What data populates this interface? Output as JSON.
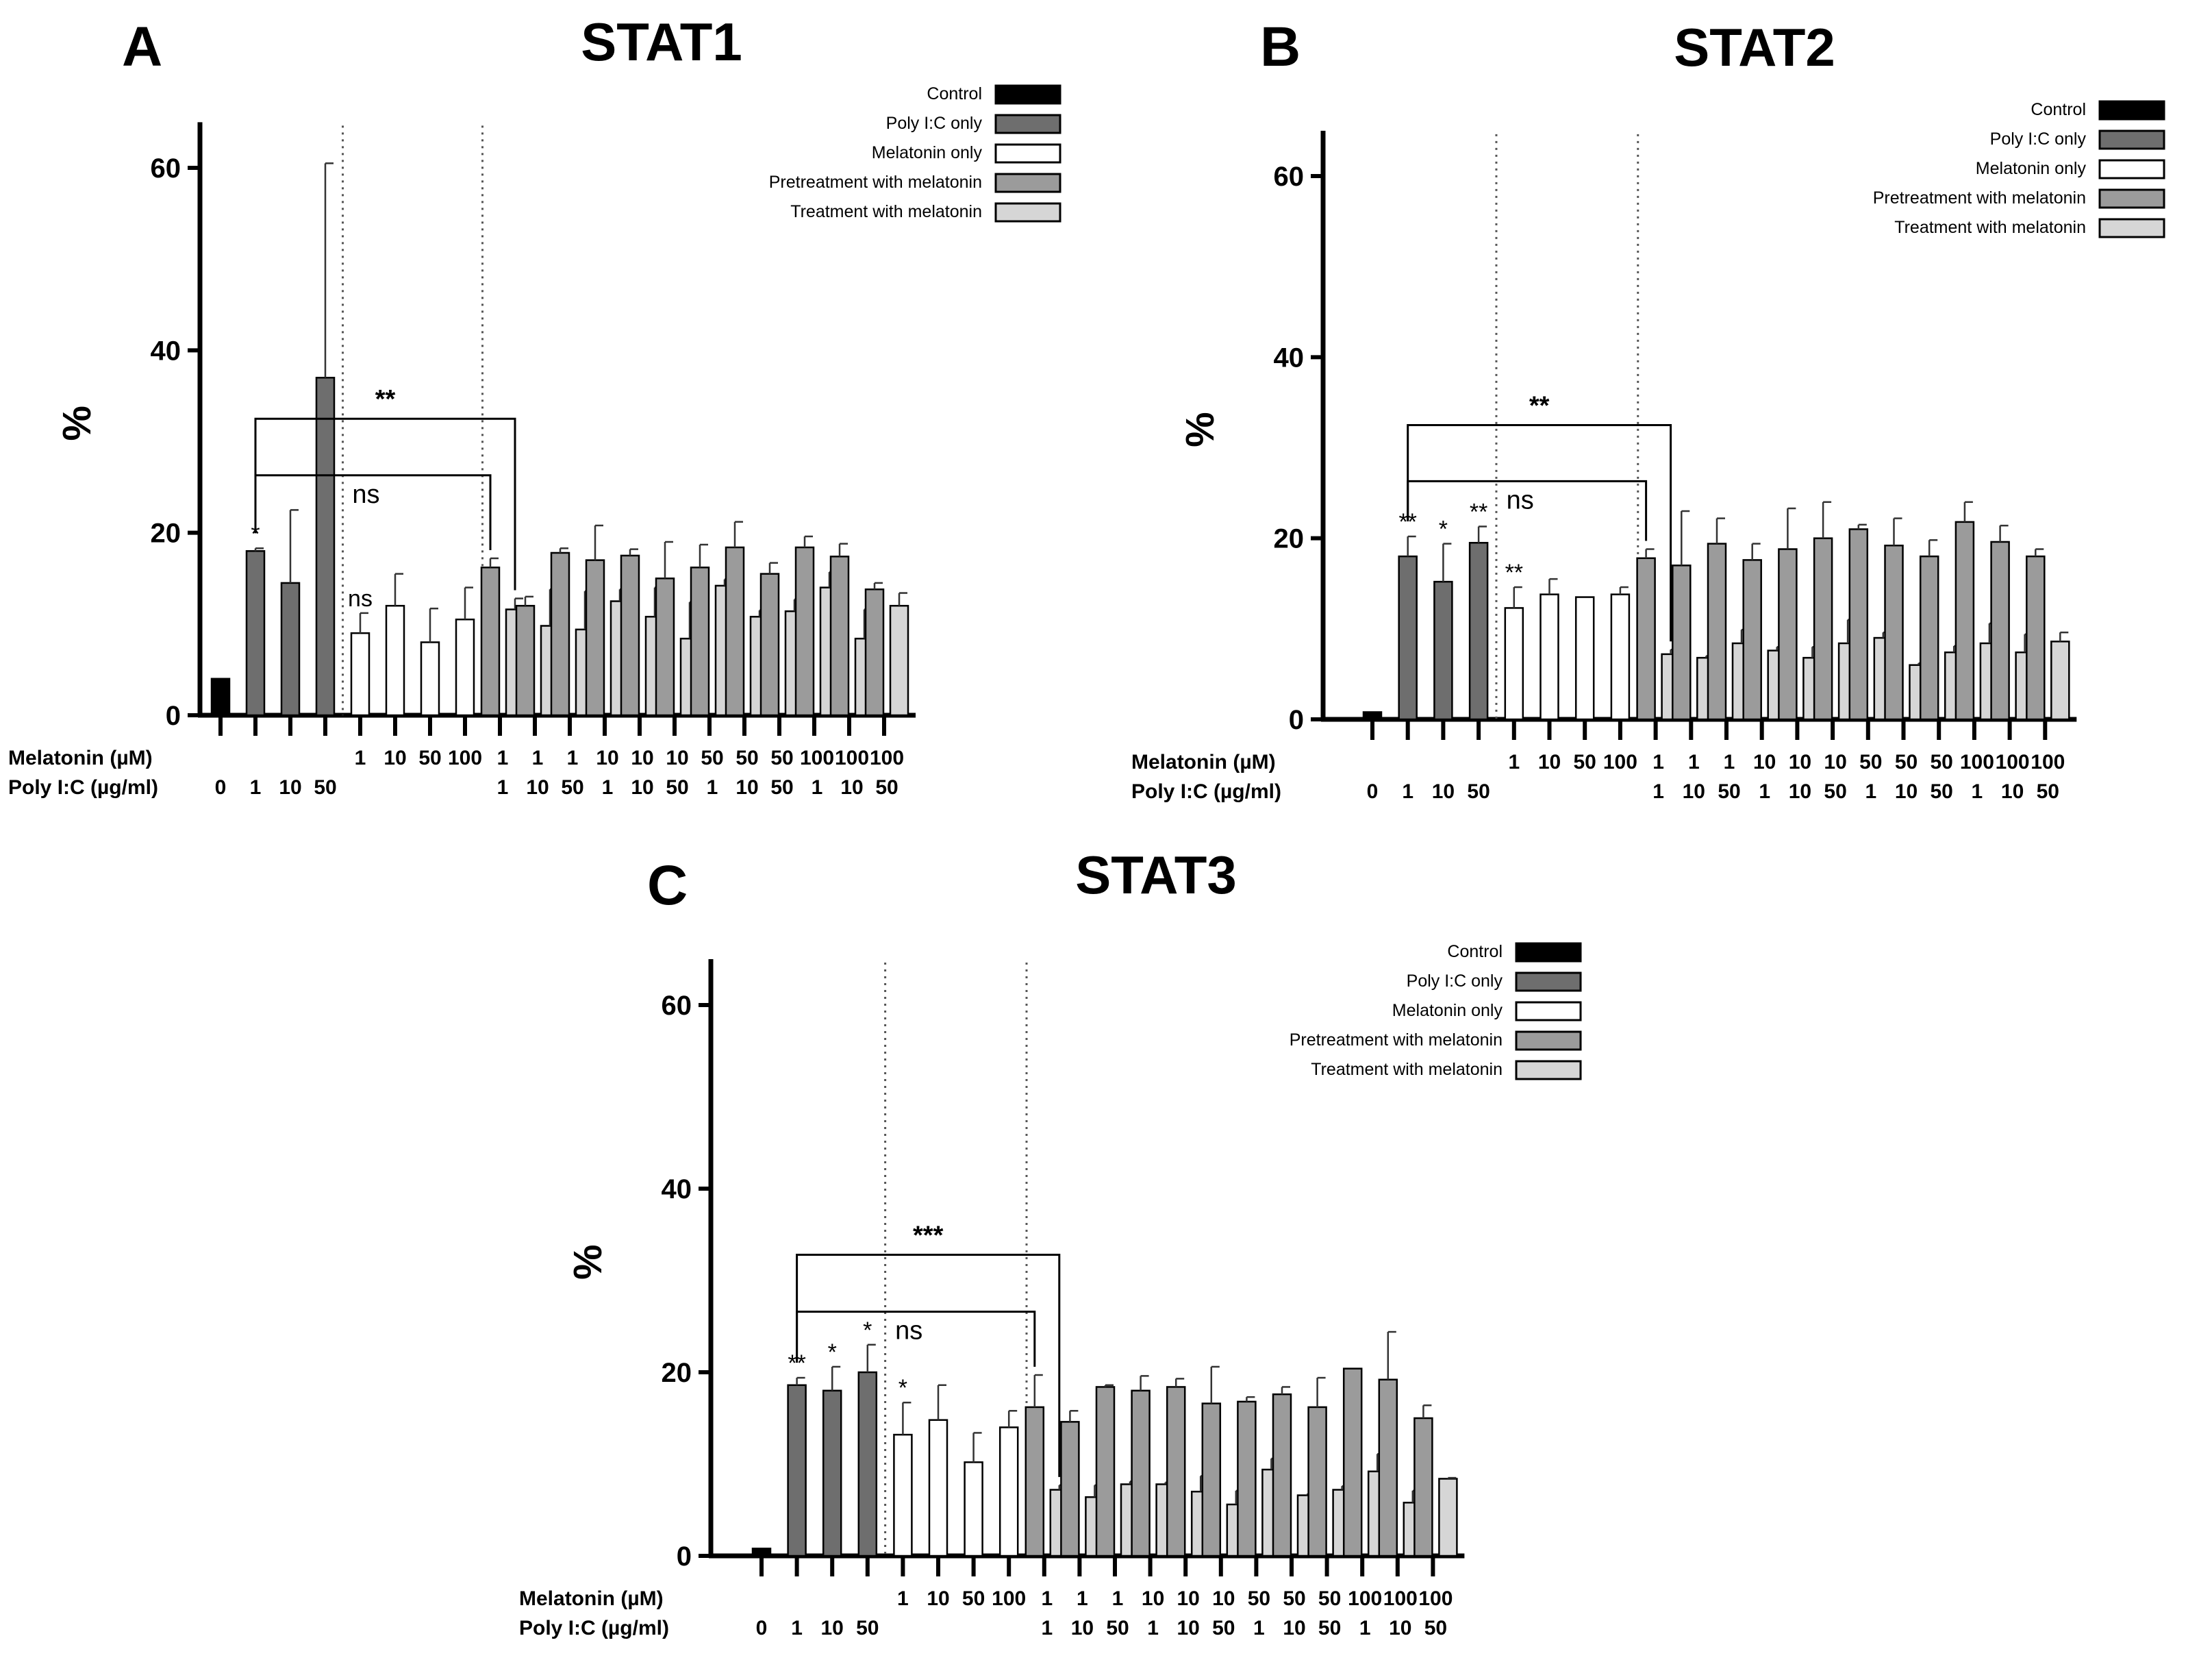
{
  "colors": {
    "control": "#000000",
    "poly_only": "#6e6e6e",
    "melatonin_only": "#ffffff",
    "pretreatment": "#9b9b9b",
    "treatment": "#d6d6d6"
  },
  "conditions": {
    "row_labels": [
      "Melatonin (µM)",
      "Poly I:C (µg/ml)"
    ],
    "melatonin": [
      "",
      "",
      "",
      "",
      "1",
      "10",
      "50",
      "100",
      "1",
      "1",
      "1",
      "10",
      "10",
      "10",
      "50",
      "50",
      "50",
      "100",
      "100",
      "100"
    ],
    "polyic": [
      "0",
      "1",
      "10",
      "50",
      "",
      "",
      "",
      "",
      "1",
      "10",
      "50",
      "1",
      "10",
      "50",
      "1",
      "10",
      "50",
      "1",
      "10",
      "50"
    ]
  },
  "chart_data": [
    {
      "type": "bar",
      "panel_letter": "A",
      "title": "STAT1",
      "ylabel": "%",
      "ylim": [
        0,
        65
      ],
      "yticks": [
        "0",
        "20",
        "40",
        "60"
      ],
      "legend": {
        "placement": "top-right",
        "entries": [
          "Control",
          "Poly I:C only",
          "Melatonin only",
          "Pretreatment with melatonin",
          "Treatment with melatonin"
        ]
      },
      "singles": [
        {
          "kind": "control",
          "value": 4,
          "err": 0
        },
        {
          "kind": "poly_only",
          "value": 18,
          "err": 0.3
        },
        {
          "kind": "poly_only",
          "value": 14.5,
          "err": 8
        },
        {
          "kind": "poly_only",
          "value": 37,
          "err": 23.5
        },
        {
          "kind": "melatonin_only",
          "value": 9,
          "err": 2.2
        },
        {
          "kind": "melatonin_only",
          "value": 12,
          "err": 3.5
        },
        {
          "kind": "melatonin_only",
          "value": 8,
          "err": 3.7
        },
        {
          "kind": "melatonin_only",
          "value": 10.5,
          "err": 3.5
        }
      ],
      "combos": [
        {
          "pre": 16.2,
          "pre_err": 1,
          "treat": 11.6,
          "treat_err": 1.2
        },
        {
          "pre": 12,
          "pre_err": 1,
          "treat": 9.8,
          "treat_err": 4
        },
        {
          "pre": 17.8,
          "pre_err": 0.5,
          "treat": 9.4,
          "treat_err": 4.2
        },
        {
          "pre": 17,
          "pre_err": 3.8,
          "treat": 12.5,
          "treat_err": 1.3
        },
        {
          "pre": 17.5,
          "pre_err": 0.7,
          "treat": 10.8,
          "treat_err": 3.2
        },
        {
          "pre": 15,
          "pre_err": 4,
          "treat": 8.4,
          "treat_err": 4
        },
        {
          "pre": 16.2,
          "pre_err": 2.5,
          "treat": 14.2,
          "treat_err": 0.7
        },
        {
          "pre": 18.4,
          "pre_err": 2.8,
          "treat": 10.8,
          "treat_err": 0.7
        },
        {
          "pre": 15.5,
          "pre_err": 1.2,
          "treat": 11.4,
          "treat_err": 1.3
        },
        {
          "pre": 18.4,
          "pre_err": 1.2,
          "treat": 14,
          "treat_err": 1.7
        },
        {
          "pre": 17.4,
          "pre_err": 1.4,
          "treat": 8.4,
          "treat_err": 3.2
        },
        {
          "pre": 13.8,
          "pre_err": 0.7,
          "treat": 12,
          "treat_err": 1.4
        }
      ],
      "singles_sig": [
        {
          "index": 1,
          "text": "*"
        },
        {
          "index": 4,
          "text": "ns"
        }
      ],
      "brackets": [
        {
          "from": "single:1",
          "to": "combo:0:treat",
          "text": "**",
          "level": 0
        },
        {
          "from": "single:1",
          "to": "combo:0:pre",
          "text": "ns",
          "level": 1
        }
      ]
    },
    {
      "type": "bar",
      "panel_letter": "B",
      "title": "STAT2",
      "ylabel": "%",
      "ylim": [
        0,
        65
      ],
      "yticks": [
        "0",
        "20",
        "40",
        "60"
      ],
      "legend": {
        "placement": "top-right",
        "entries": [
          "Control",
          "Poly I:C only",
          "Melatonin only",
          "Pretreatment with melatonin",
          "Treatment with melatonin"
        ]
      },
      "singles": [
        {
          "kind": "control",
          "value": 0.8,
          "err": 0
        },
        {
          "kind": "poly_only",
          "value": 18,
          "err": 2.2
        },
        {
          "kind": "poly_only",
          "value": 15.2,
          "err": 4.2
        },
        {
          "kind": "poly_only",
          "value": 19.5,
          "err": 1.8
        },
        {
          "kind": "melatonin_only",
          "value": 12.3,
          "err": 2.3
        },
        {
          "kind": "melatonin_only",
          "value": 13.8,
          "err": 1.7
        },
        {
          "kind": "melatonin_only",
          "value": 13.5,
          "err": 0
        },
        {
          "kind": "melatonin_only",
          "value": 13.8,
          "err": 0.8
        }
      ],
      "combos": [
        {
          "pre": 17.8,
          "pre_err": 1,
          "treat": 7.2,
          "treat_err": 0.5
        },
        {
          "pre": 17,
          "pre_err": 6,
          "treat": 6.8,
          "treat_err": 0.2
        },
        {
          "pre": 19.4,
          "pre_err": 2.8,
          "treat": 8.4,
          "treat_err": 1.5
        },
        {
          "pre": 17.6,
          "pre_err": 1.8,
          "treat": 7.6,
          "treat_err": 0.4
        },
        {
          "pre": 18.8,
          "pre_err": 4.5,
          "treat": 6.8,
          "treat_err": 1.2
        },
        {
          "pre": 20,
          "pre_err": 4,
          "treat": 8.4,
          "treat_err": 2.6
        },
        {
          "pre": 21,
          "pre_err": 0.5,
          "treat": 9,
          "treat_err": 0.6
        },
        {
          "pre": 19.2,
          "pre_err": 3,
          "treat": 6,
          "treat_err": 0.2
        },
        {
          "pre": 18,
          "pre_err": 1.8,
          "treat": 7.4,
          "treat_err": 0.7
        },
        {
          "pre": 21.8,
          "pre_err": 2.2,
          "treat": 8.4,
          "treat_err": 2.2
        },
        {
          "pre": 19.6,
          "pre_err": 1.8,
          "treat": 7.4,
          "treat_err": 2
        },
        {
          "pre": 18,
          "pre_err": 0.8,
          "treat": 8.6,
          "treat_err": 1
        }
      ],
      "singles_sig": [
        {
          "index": 1,
          "text": "**"
        },
        {
          "index": 2,
          "text": "*"
        },
        {
          "index": 3,
          "text": "**"
        },
        {
          "index": 4,
          "text": "**"
        }
      ],
      "brackets": [
        {
          "from": "single:1",
          "to": "combo:0:treat",
          "text": "**",
          "level": 0
        },
        {
          "from": "single:1",
          "to": "combo:0:pre",
          "text": "ns",
          "level": 1
        }
      ]
    },
    {
      "type": "bar",
      "panel_letter": "C",
      "title": "STAT3",
      "ylabel": "%",
      "ylim": [
        0,
        65
      ],
      "yticks": [
        "0",
        "20",
        "40",
        "60"
      ],
      "legend": {
        "placement": "top-right",
        "entries": [
          "Control",
          "Poly I:C only",
          "Melatonin only",
          "Pretreatment with melatonin",
          "Treatment with melatonin"
        ]
      },
      "singles": [
        {
          "kind": "control",
          "value": 0.8,
          "err": 0
        },
        {
          "kind": "poly_only",
          "value": 18.6,
          "err": 0.8
        },
        {
          "kind": "poly_only",
          "value": 18,
          "err": 2.6
        },
        {
          "kind": "poly_only",
          "value": 20,
          "err": 3
        },
        {
          "kind": "melatonin_only",
          "value": 13.2,
          "err": 3.5
        },
        {
          "kind": "melatonin_only",
          "value": 14.8,
          "err": 3.8
        },
        {
          "kind": "melatonin_only",
          "value": 10.2,
          "err": 3.2
        },
        {
          "kind": "melatonin_only",
          "value": 14,
          "err": 1.8
        }
      ],
      "combos": [
        {
          "pre": 16.2,
          "pre_err": 3.5,
          "treat": 7.2,
          "treat_err": 0.5
        },
        {
          "pre": 14.6,
          "pre_err": 1.2,
          "treat": 6.4,
          "treat_err": 1.3
        },
        {
          "pre": 18.4,
          "pre_err": 0.2,
          "treat": 7.8,
          "treat_err": 0.3
        },
        {
          "pre": 18,
          "pre_err": 1.6,
          "treat": 7.8,
          "treat_err": 0.2
        },
        {
          "pre": 18.4,
          "pre_err": 0.9,
          "treat": 7,
          "treat_err": 1.7
        },
        {
          "pre": 16.6,
          "pre_err": 4,
          "treat": 5.6,
          "treat_err": 1.5
        },
        {
          "pre": 16.8,
          "pre_err": 0.5,
          "treat": 9.4,
          "treat_err": 1.2
        },
        {
          "pre": 17.6,
          "pre_err": 0.8,
          "treat": 6.6,
          "treat_err": 0.1
        },
        {
          "pre": 16.2,
          "pre_err": 3.2,
          "treat": 7.2,
          "treat_err": 0.4
        },
        {
          "pre": 20.4,
          "pre_err": 0,
          "treat": 9.2,
          "treat_err": 1.9
        },
        {
          "pre": 19.2,
          "pre_err": 5.2,
          "treat": 5.8,
          "treat_err": 1.3
        },
        {
          "pre": 15,
          "pre_err": 1.4,
          "treat": 8.4,
          "treat_err": 0.1
        }
      ],
      "singles_sig": [
        {
          "index": 1,
          "text": "**"
        },
        {
          "index": 2,
          "text": "*"
        },
        {
          "index": 3,
          "text": "*"
        },
        {
          "index": 4,
          "text": "*"
        }
      ],
      "brackets": [
        {
          "from": "single:1",
          "to": "combo:0:treat",
          "text": "***",
          "level": 0
        },
        {
          "from": "single:1",
          "to": "combo:0:pre",
          "text": "ns",
          "level": 1
        }
      ]
    }
  ]
}
